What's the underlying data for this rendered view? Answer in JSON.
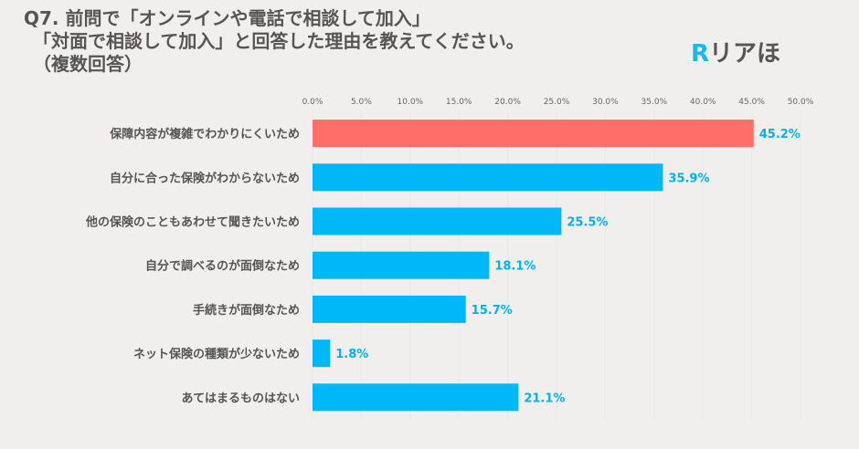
{
  "title_lines": [
    "Q7. 前問で「オンラインや電話で相談して加入」",
    "　「対面で相談して加入」と回答した理由を教えてください。",
    "　（複数回答）"
  ],
  "logo": {
    "mark": "R",
    "text": "リアほ"
  },
  "chart_data": {
    "type": "bar",
    "orientation": "horizontal",
    "categories": [
      "保障内容が複雑でわかりにくいため",
      "自分に合った保険がわからないため",
      "他の保険のこともあわせて聞きたいため",
      "自分で調べるのが面倒なため",
      "手続きが面倒なため",
      "ネット保険の種類が少ないため",
      "あてはまるものはない"
    ],
    "values": [
      45.2,
      35.9,
      25.5,
      18.1,
      15.7,
      1.8,
      21.1
    ],
    "data_labels": [
      "45.2%",
      "35.9%",
      "25.5%",
      "18.1%",
      "15.7%",
      "1.8%",
      "21.1%"
    ],
    "xlim": [
      0,
      50
    ],
    "ticks": [
      "0.0%",
      "5.0%",
      "10.0%",
      "15.0%",
      "20.0%",
      "25.0%",
      "30.0%",
      "35.0%",
      "40.0%",
      "45.0%",
      "50.0%"
    ],
    "tick_values": [
      0,
      5,
      10,
      15,
      20,
      25,
      30,
      35,
      40,
      45,
      50
    ],
    "axis_position": "top",
    "grid": true,
    "colors": {
      "highlight": "#ff6f67",
      "default": "#00b8f8",
      "label": "#00b0f0"
    }
  }
}
